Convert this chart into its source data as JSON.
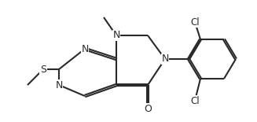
{
  "bg": "#ffffff",
  "lw": 1.5,
  "fs": 9,
  "bond_color": "#2a2a2a",
  "figsize": [
    3.27,
    1.55
  ],
  "dpi": 100,
  "xlim": [
    0.0,
    3.27
  ],
  "ylim": [
    0.0,
    1.55
  ]
}
